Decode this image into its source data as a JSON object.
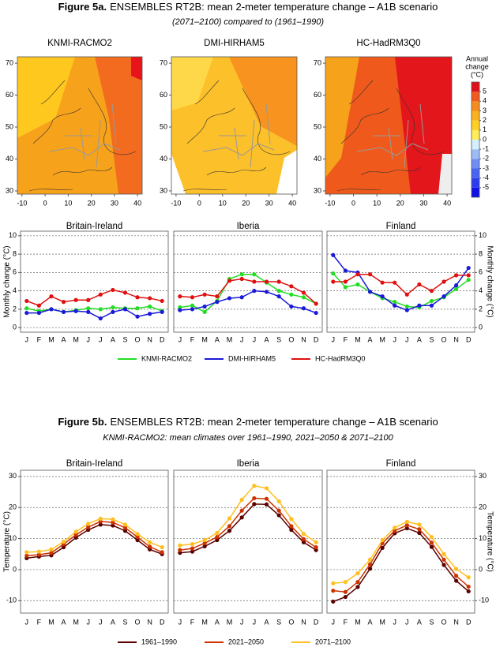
{
  "figures": [
    {
      "label": "Figure 5a.",
      "title": "ENSEMBLES RT2B: mean 2-meter temperature change – A1B scenario",
      "subtitle": "(2071–2100) compared to (1961–1990)"
    },
    {
      "label": "Figure 5b.",
      "title": "ENSEMBLES RT2B: mean 2-meter temperature change – A1B scenario",
      "subtitle": "KNMI-RACMO2: mean climates over 1961–1990, 2021–2050 & 2071–2100"
    }
  ],
  "chart_data": [
    {
      "type": "map",
      "title": "KNMI-RACMO2",
      "xlim": [
        -12,
        42
      ],
      "ylim": [
        29,
        72
      ],
      "xticks": [
        -10,
        0,
        10,
        20,
        30,
        40
      ],
      "yticks": [
        30,
        40,
        50,
        60,
        70
      ]
    },
    {
      "type": "map",
      "title": "DMI-HIRHAM5",
      "xlim": [
        -12,
        42
      ],
      "ylim": [
        29,
        72
      ],
      "xticks": [
        -10,
        0,
        10,
        20,
        30,
        40
      ],
      "yticks": [
        30,
        40,
        50,
        60,
        70
      ]
    },
    {
      "type": "map",
      "title": "HC-HadRM3Q0",
      "xlim": [
        -12,
        42
      ],
      "ylim": [
        29,
        72
      ],
      "xticks": [
        -10,
        0,
        10,
        20,
        30,
        40
      ],
      "yticks": [
        30,
        40,
        50,
        60,
        70
      ],
      "colorbar": {
        "title": [
          "Annual",
          "change",
          "(°C)"
        ],
        "lim": [
          -6,
          6
        ],
        "ticks": [
          5,
          4,
          3,
          2,
          1,
          0,
          -1,
          -2,
          -3,
          -4,
          -5
        ],
        "colors": [
          "#1010e8",
          "#2c3cf0",
          "#4a64f2",
          "#6e8ef4",
          "#9cbcf8",
          "#d4f0ff",
          "#ffee58",
          "#ffd020",
          "#fbb01c",
          "#f68c1e",
          "#f05a1e",
          "#e0101c"
        ]
      }
    },
    {
      "type": "line",
      "title": "Britain-Ireland",
      "categories": [
        "J",
        "F",
        "M",
        "A",
        "M",
        "J",
        "J",
        "A",
        "S",
        "O",
        "N",
        "D"
      ],
      "ylim": [
        -0.5,
        10.5
      ],
      "yticks": [
        0,
        2,
        4,
        6,
        8,
        10
      ],
      "ytick_side": "left",
      "ylabel": "Monthly change  (°C)",
      "grid": true,
      "series": [
        {
          "name": "KNMI-RACMO2",
          "color": "#22dd22",
          "values": [
            2.1,
            1.8,
            2.0,
            1.7,
            1.9,
            2.1,
            2.0,
            2.2,
            2.1,
            2.1,
            2.3,
            1.8
          ]
        },
        {
          "name": "DMI-HIRHAM5",
          "color": "#1a1ad8",
          "values": [
            1.6,
            1.6,
            2.0,
            1.7,
            1.8,
            1.7,
            1.0,
            1.7,
            2.0,
            1.2,
            1.5,
            1.7
          ]
        },
        {
          "name": "HC-HadRM3Q0",
          "color": "#e01010",
          "values": [
            2.9,
            2.4,
            3.4,
            2.8,
            3.0,
            3.0,
            3.6,
            4.1,
            3.8,
            3.3,
            3.2,
            2.9
          ]
        }
      ]
    },
    {
      "type": "line",
      "title": "Iberia",
      "categories": [
        "J",
        "F",
        "M",
        "A",
        "M",
        "J",
        "J",
        "A",
        "S",
        "O",
        "N",
        "D"
      ],
      "ylim": [
        -0.5,
        10.5
      ],
      "yticks": [
        0,
        2,
        4,
        6,
        8,
        10
      ],
      "ytick_side": "none",
      "grid": true,
      "legend": "bottom",
      "series": [
        {
          "name": "KNMI-RACMO2",
          "color": "#22dd22",
          "values": [
            2.2,
            2.4,
            1.7,
            2.9,
            5.3,
            5.8,
            5.8,
            4.9,
            4.0,
            3.6,
            3.3,
            2.6
          ]
        },
        {
          "name": "DMI-HIRHAM5",
          "color": "#1a1ad8",
          "values": [
            1.9,
            2.0,
            2.3,
            2.8,
            3.2,
            3.3,
            4.0,
            3.9,
            3.4,
            2.3,
            2.1,
            1.6
          ]
        },
        {
          "name": "HC-HadRM3Q0",
          "color": "#e01010",
          "values": [
            3.4,
            3.3,
            3.6,
            3.4,
            5.1,
            5.3,
            5.0,
            5.0,
            5.0,
            4.5,
            3.8,
            2.6
          ]
        }
      ]
    },
    {
      "type": "line",
      "title": "Finland",
      "categories": [
        "J",
        "F",
        "M",
        "A",
        "M",
        "J",
        "J",
        "A",
        "S",
        "O",
        "N",
        "D"
      ],
      "ylim": [
        -0.5,
        10.5
      ],
      "yticks": [
        0,
        2,
        4,
        6,
        8,
        10
      ],
      "ytick_side": "right",
      "ylabel": "Monthly change  (°C)",
      "grid": true,
      "series": [
        {
          "name": "KNMI-RACMO2",
          "color": "#22dd22",
          "values": [
            5.9,
            4.4,
            4.7,
            3.9,
            3.2,
            2.8,
            2.3,
            2.2,
            2.9,
            3.3,
            4.2,
            5.2
          ]
        },
        {
          "name": "DMI-HIRHAM5",
          "color": "#1a1ad8",
          "values": [
            7.9,
            6.2,
            6.0,
            3.9,
            3.4,
            2.4,
            1.9,
            2.4,
            2.4,
            3.4,
            4.6,
            6.5
          ]
        },
        {
          "name": "HC-HadRM3Q0",
          "color": "#e01010",
          "values": [
            5.0,
            5.0,
            5.8,
            5.8,
            4.9,
            4.9,
            3.6,
            4.7,
            4.0,
            5.0,
            5.7,
            5.7
          ]
        }
      ]
    },
    {
      "type": "line",
      "title": "Britain-Ireland",
      "categories": [
        "J",
        "F",
        "M",
        "A",
        "M",
        "J",
        "J",
        "A",
        "S",
        "O",
        "N",
        "D"
      ],
      "ylim": [
        -14,
        32
      ],
      "yticks": [
        -10,
        0,
        10,
        20,
        30
      ],
      "ytick_side": "left",
      "ylabel": "Temperature  (°C)",
      "grid": true,
      "series": [
        {
          "name": "1961–1990",
          "color": "#5a0000",
          "values": [
            3.7,
            4.2,
            4.6,
            7.2,
            10.3,
            12.8,
            14.5,
            14.2,
            12.5,
            9.5,
            6.5,
            5.0
          ]
        },
        {
          "name": "2021–2050",
          "color": "#cc3300",
          "values": [
            4.5,
            4.8,
            5.4,
            8.2,
            11.2,
            13.7,
            15.5,
            15.2,
            13.5,
            10.5,
            7.4,
            5.6
          ]
        },
        {
          "name": "2071–2100",
          "color": "#ffbf1f",
          "values": [
            5.6,
            5.8,
            6.5,
            9.0,
            12.2,
            14.8,
            16.4,
            16.2,
            14.5,
            11.5,
            8.8,
            7.2
          ]
        }
      ]
    },
    {
      "type": "line",
      "title": "Iberia",
      "categories": [
        "J",
        "F",
        "M",
        "A",
        "M",
        "J",
        "J",
        "A",
        "S",
        "O",
        "N",
        "D"
      ],
      "ylim": [
        -14,
        32
      ],
      "yticks": [
        -10,
        0,
        10,
        20,
        30
      ],
      "ytick_side": "none",
      "grid": true,
      "legend": "bottom",
      "series": [
        {
          "name": "1961–1990",
          "color": "#5a0000",
          "values": [
            5.4,
            5.8,
            7.5,
            9.5,
            12.5,
            16.8,
            21.1,
            21.0,
            17.5,
            12.8,
            8.8,
            6.3
          ]
        },
        {
          "name": "2021–2050",
          "color": "#cc3300",
          "values": [
            6.3,
            6.8,
            8.5,
            10.5,
            14.0,
            19.0,
            23.0,
            22.8,
            19.0,
            14.0,
            9.8,
            7.2
          ]
        },
        {
          "name": "2071–2100",
          "color": "#ffbf1f",
          "values": [
            7.8,
            8.2,
            9.5,
            11.8,
            16.5,
            22.5,
            27.0,
            26.2,
            22.0,
            16.3,
            11.5,
            8.8
          ]
        }
      ]
    },
    {
      "type": "line",
      "title": "Finland",
      "categories": [
        "J",
        "F",
        "M",
        "A",
        "M",
        "J",
        "J",
        "A",
        "S",
        "O",
        "N",
        "D"
      ],
      "ylim": [
        -14,
        32
      ],
      "yticks": [
        -10,
        0,
        10,
        20,
        30
      ],
      "ytick_side": "right",
      "ylabel": "Temperature  (°C)",
      "grid": true,
      "series": [
        {
          "name": "1961–1990",
          "color": "#5a0000",
          "values": [
            -10.3,
            -8.8,
            -5.6,
            0.3,
            7.0,
            11.7,
            13.3,
            11.8,
            7.3,
            1.5,
            -3.6,
            -7.0
          ]
        },
        {
          "name": "2021–2050",
          "color": "#cc3300",
          "values": [
            -6.8,
            -7.2,
            -4.0,
            1.7,
            8.5,
            12.5,
            14.3,
            13.0,
            8.7,
            3.2,
            -2.0,
            -5.5
          ]
        },
        {
          "name": "2071–2100",
          "color": "#ffbf1f",
          "values": [
            -4.4,
            -4.0,
            -1.2,
            3.2,
            9.5,
            13.5,
            15.4,
            14.5,
            10.5,
            5.0,
            0.2,
            -2.5
          ]
        }
      ]
    }
  ]
}
